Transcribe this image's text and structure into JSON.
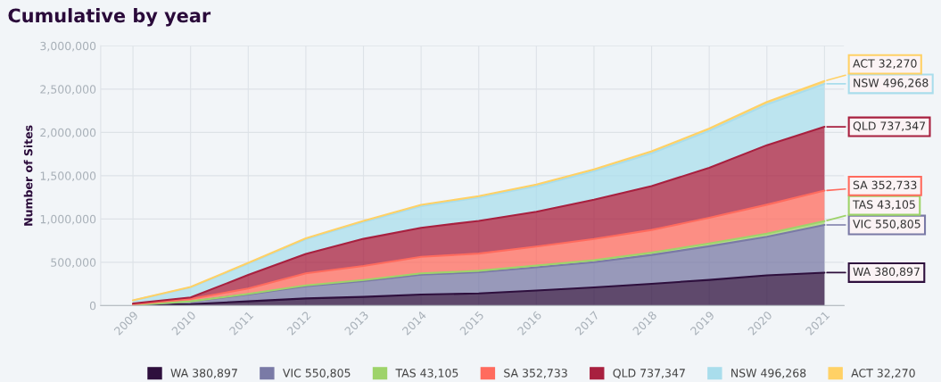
{
  "chart_data": {
    "type": "area",
    "stacked": true,
    "title": "Cumulative by year",
    "ylabel": "Number of Sites",
    "x": [
      2009,
      2010,
      2011,
      2012,
      2013,
      2014,
      2015,
      2016,
      2017,
      2018,
      2019,
      2020,
      2021
    ],
    "xlim": [
      2008.44,
      2021.34
    ],
    "xticks": [
      2009,
      2010,
      2011,
      2012,
      2013,
      2014,
      2015,
      2016,
      2017,
      2018,
      2019,
      2020,
      2021
    ],
    "ylim": [
      0,
      3000000
    ],
    "yticks": [
      {
        "value": 0,
        "label": "0"
      },
      {
        "value": 500000,
        "label": "500,000"
      },
      {
        "value": 1000000,
        "label": "1,000,000"
      },
      {
        "value": 1500000,
        "label": "1,500,000"
      },
      {
        "value": 2000000,
        "label": "2,000,000"
      },
      {
        "value": 2500000,
        "label": "2,500,000"
      },
      {
        "value": 3000000,
        "label": "3,000,000"
      }
    ],
    "grid": true,
    "legend": "bottom",
    "series": [
      {
        "name": "WA 380,897",
        "color": "#2e0f3d",
        "values": [
          3000,
          17000,
          49000,
          83000,
          101000,
          128000,
          140000,
          175000,
          210000,
          252000,
          297000,
          350000,
          380897
        ],
        "value_labels": [
          null,
          null,
          null,
          null,
          null,
          null,
          null,
          null,
          null,
          null,
          null,
          null,
          "WA 380,897"
        ]
      },
      {
        "name": "VIC 550,805",
        "color": "#7a7aa6",
        "values": [
          3000,
          29000,
          80000,
          141000,
          182000,
          229000,
          245000,
          267000,
          291000,
          333000,
          389000,
          445000,
          550805
        ],
        "value_labels": [
          null,
          null,
          null,
          null,
          null,
          null,
          null,
          null,
          null,
          null,
          null,
          null,
          "VIC 550,805"
        ]
      },
      {
        "name": "TAS 43,105",
        "color": "#9ed36a",
        "values": [
          1000,
          3000,
          6000,
          9000,
          12000,
          15000,
          17000,
          20000,
          23000,
          27000,
          31000,
          37000,
          43105
        ],
        "value_labels": [
          null,
          null,
          null,
          null,
          null,
          null,
          null,
          null,
          null,
          null,
          null,
          null,
          "TAS 43,105"
        ]
      },
      {
        "name": "SA 352,733",
        "color": "#ff6b5e",
        "values": [
          7000,
          27000,
          63000,
          139000,
          163000,
          191000,
          199000,
          220000,
          245000,
          262000,
          297000,
          333000,
          352733
        ],
        "value_labels": [
          null,
          null,
          null,
          null,
          null,
          null,
          null,
          null,
          null,
          null,
          null,
          null,
          "SA 352,733"
        ]
      },
      {
        "name": "QLD 737,347",
        "color": "#a8203f",
        "values": [
          10000,
          18000,
          156000,
          225000,
          313000,
          336000,
          378000,
          402000,
          455000,
          507000,
          577000,
          688000,
          737347
        ],
        "value_labels": [
          null,
          null,
          null,
          null,
          null,
          null,
          null,
          null,
          null,
          null,
          null,
          null,
          "QLD 737,347"
        ]
      },
      {
        "name": "NSW 496,268",
        "color": "#a9ddec",
        "values": [
          34000,
          116000,
          131000,
          170000,
          195000,
          249000,
          269000,
          296000,
          328000,
          379000,
          428000,
          470000,
          496268
        ],
        "value_labels": [
          null,
          null,
          null,
          null,
          null,
          null,
          null,
          null,
          null,
          null,
          null,
          null,
          "NSW 496,268"
        ]
      },
      {
        "name": "ACT 32,270",
        "color": "#ffd166",
        "values": [
          2000,
          5000,
          8000,
          11000,
          13000,
          15000,
          17000,
          19000,
          21000,
          23000,
          26000,
          29000,
          32270
        ],
        "value_labels": [
          null,
          null,
          null,
          null,
          null,
          null,
          null,
          null,
          null,
          null,
          null,
          null,
          "ACT 32,270"
        ]
      }
    ]
  }
}
